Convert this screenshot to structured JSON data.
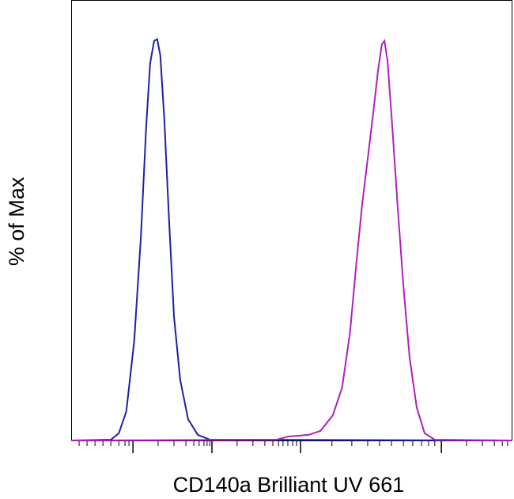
{
  "chart_data": {
    "type": "line",
    "x_label": "CD140a Brilliant UV 661",
    "y_label": "% of Max",
    "xlim": [
      0,
      1000
    ],
    "ylim": [
      0,
      110
    ],
    "xticks": [
      140,
      319,
      520,
      839
    ],
    "xminorticks": [
      18,
      36,
      54,
      72,
      90,
      108,
      122,
      131,
      197,
      233,
      260,
      278,
      290,
      301,
      308,
      314,
      376,
      412,
      439,
      457,
      470,
      480,
      491,
      502,
      511,
      591,
      636,
      672,
      699,
      726,
      753,
      774,
      794,
      810,
      824,
      896,
      932,
      959,
      977,
      989
    ],
    "series": [
      {
        "color": "#1f1fa6",
        "x": [
          0,
          90,
          108,
          125,
          143,
          158,
          170,
          179,
          188,
          195,
          202,
          211,
          222,
          233,
          247,
          265,
          287,
          314,
          1000
        ],
        "values": [
          0,
          0.2,
          1.8,
          7.3,
          25,
          50.8,
          78.4,
          94.2,
          99.8,
          100.2,
          96.2,
          80.4,
          54.7,
          31,
          15.2,
          5.3,
          1.4,
          0.2,
          0
        ]
      },
      {
        "color": "#b01ec0",
        "x": [
          0,
          466,
          493,
          538,
          565,
          593,
          614,
          632,
          645,
          659,
          672,
          685,
          695,
          704,
          710,
          717,
          728,
          740,
          753,
          767,
          783,
          801,
          824,
          1000
        ],
        "values": [
          0,
          0.2,
          1,
          1.4,
          2.4,
          6.3,
          13.2,
          27,
          42.7,
          58.5,
          70.3,
          82.2,
          92,
          98.9,
          99.8,
          94.8,
          78,
          58.3,
          38.5,
          20.7,
          8.3,
          1.8,
          0.2,
          0
        ]
      }
    ]
  }
}
